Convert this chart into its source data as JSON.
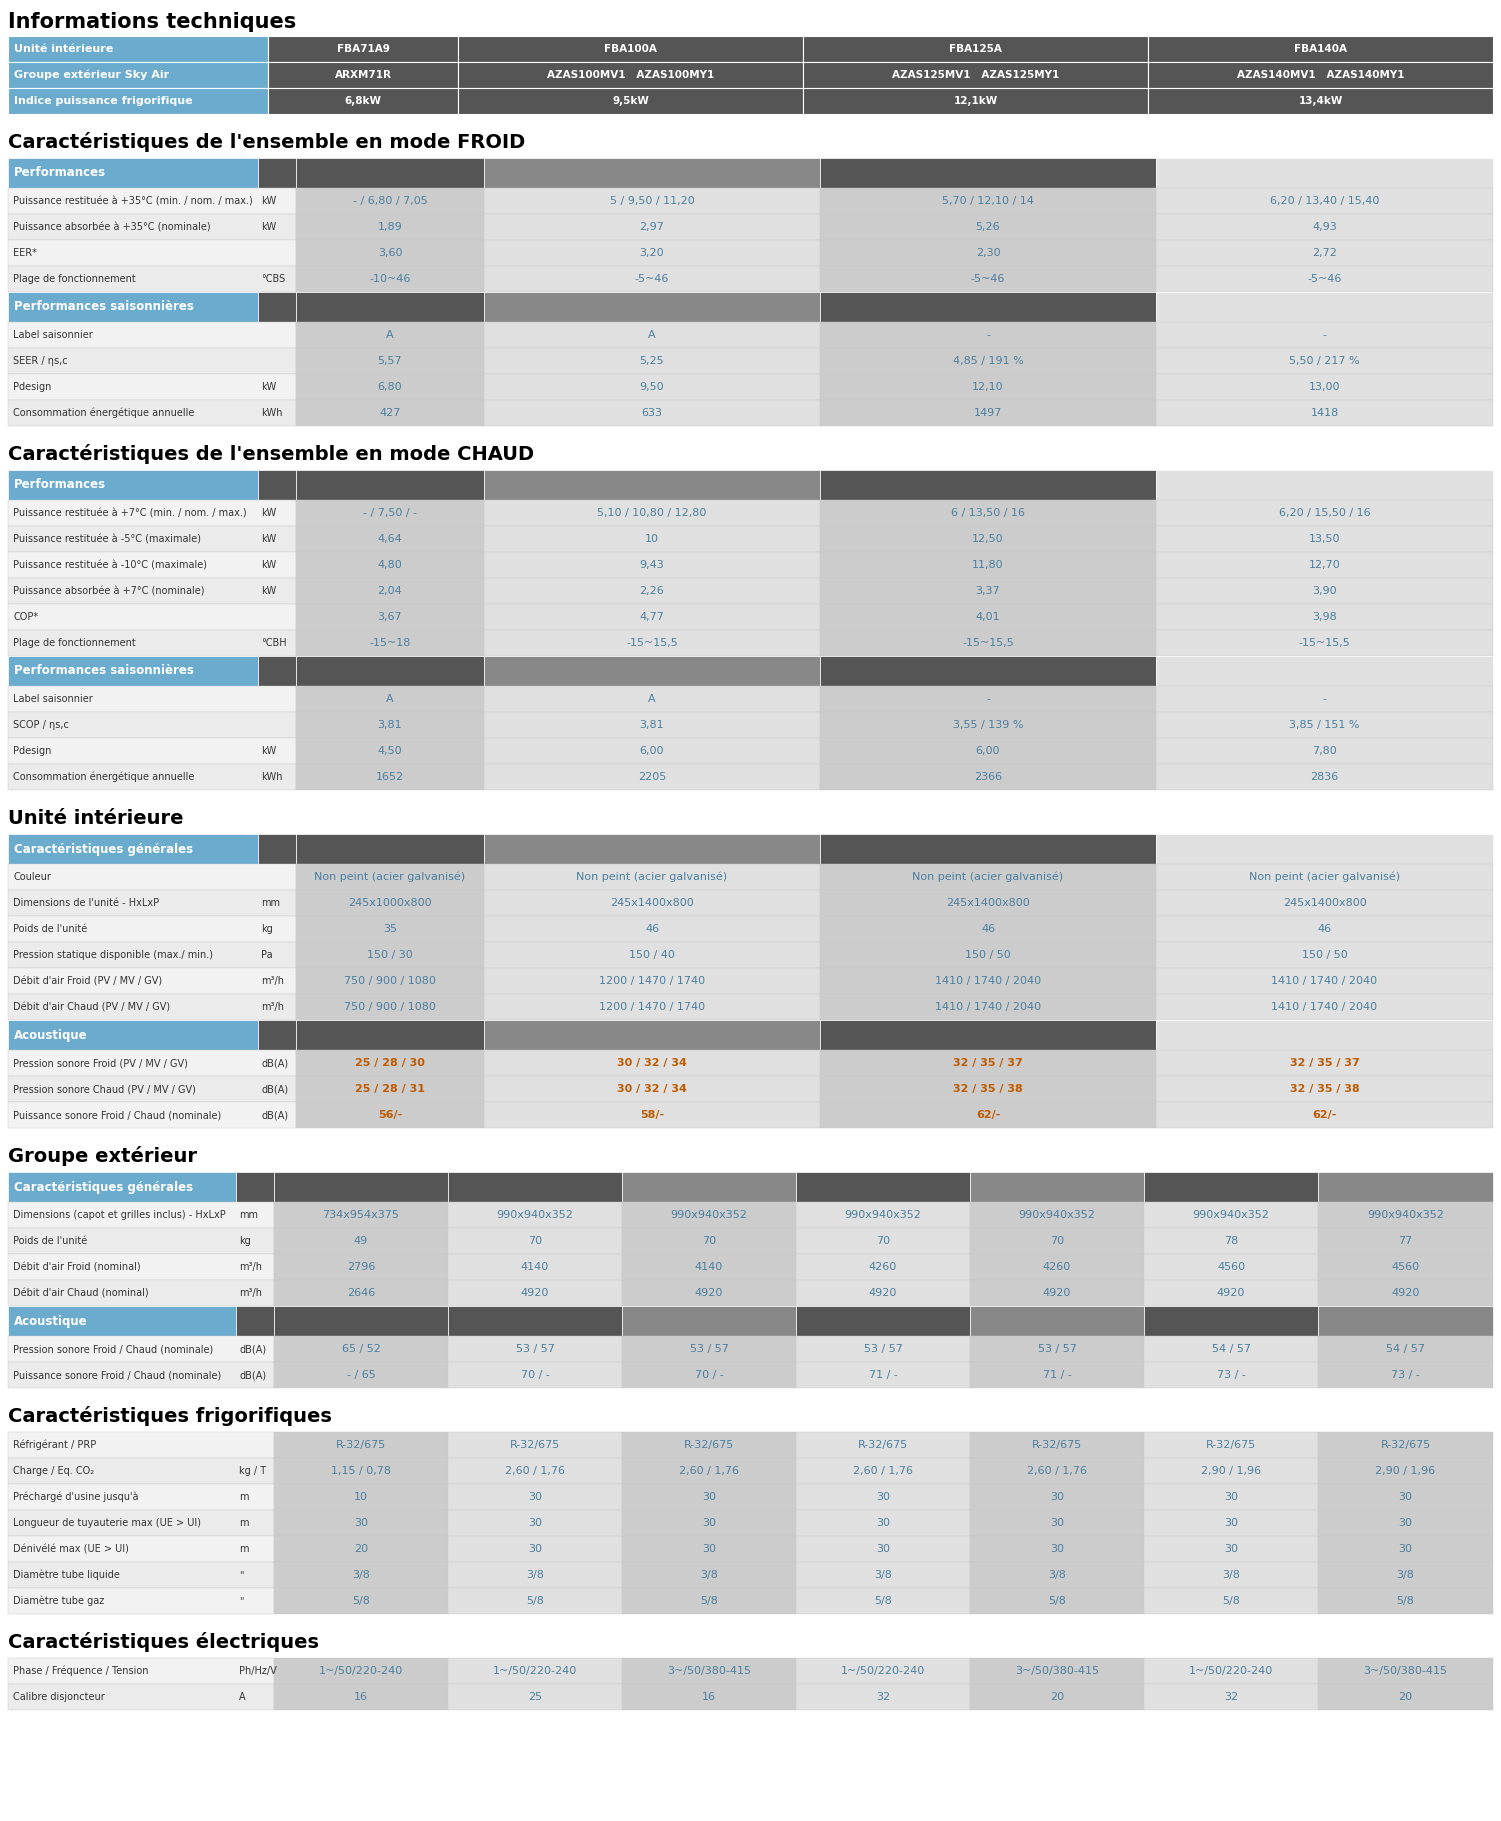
{
  "title_main": "Informations techniques",
  "title_froid": "Caractéristiques de l'ensemble en mode FROID",
  "title_chaud": "Caractéristiques de l'ensemble en mode CHAUD",
  "title_unite": "Unité intérieure",
  "title_groupe": "Groupe extérieur",
  "title_frigo": "Caractéristiques frigorifiques",
  "title_elec": "Caractéristiques électriques",
  "col_blue": "#6aabce",
  "col_dark": "#555555",
  "col_medium": "#888888",
  "col_light": "#cccccc",
  "col_white": "#f2f2f2",
  "col_very_light": "#e0e0e0",
  "col_lightest": "#ebebeb",
  "froid_perf_rows": [
    [
      "Puissance restituée à +35°C (min. / nom. / max.)",
      "kW",
      "- / 6,80 / 7,05",
      "5 / 9,50 / 11,20",
      "5,70 / 12,10 / 14",
      "6,20 / 13,40 / 15,40"
    ],
    [
      "Puissance absorbée à +35°C (nominale)",
      "kW",
      "1,89",
      "2,97",
      "5,26",
      "4,93"
    ],
    [
      "EER*",
      "",
      "3,60",
      "3,20",
      "2,30",
      "2,72"
    ],
    [
      "Plage de fonctionnement",
      "°CBS",
      "-10~46",
      "-5~46",
      "-5~46",
      "-5~46"
    ]
  ],
  "froid_saison_rows": [
    [
      "Label saisonnier",
      "",
      "A",
      "A",
      "-",
      "-"
    ],
    [
      "SEER / ηs,c",
      "",
      "5,57",
      "5,25",
      "4,85 / 191 %",
      "5,50 / 217 %"
    ],
    [
      "Pdesign",
      "kW",
      "6,80",
      "9,50",
      "12,10",
      "13,00"
    ],
    [
      "Consommation énergétique annuelle",
      "kWh",
      "427",
      "633",
      "1497",
      "1418"
    ]
  ],
  "chaud_perf_rows": [
    [
      "Puissance restituée à +7°C (min. / nom. / max.)",
      "kW",
      "- / 7,50 / -",
      "5,10 / 10,80 / 12,80",
      "6 / 13,50 / 16",
      "6,20 / 15,50 / 16"
    ],
    [
      "Puissance restituée à -5°C (maximale)",
      "kW",
      "4,64",
      "10",
      "12,50",
      "13,50"
    ],
    [
      "Puissance restituée à -10°C (maximale)",
      "kW",
      "4,80",
      "9,43",
      "11,80",
      "12,70"
    ],
    [
      "Puissance absorbée à +7°C (nominale)",
      "kW",
      "2,04",
      "2,26",
      "3,37",
      "3,90"
    ],
    [
      "COP*",
      "",
      "3,67",
      "4,77",
      "4,01",
      "3,98"
    ],
    [
      "Plage de fonctionnement",
      "°CBH",
      "-15~18",
      "-15~15,5",
      "-15~15,5",
      "-15~15,5"
    ]
  ],
  "chaud_saison_rows": [
    [
      "Label saisonnier",
      "",
      "A",
      "A",
      "-",
      "-"
    ],
    [
      "SCOP / ηs,c",
      "",
      "3,81",
      "3,81",
      "3,55 / 139 %",
      "3,85 / 151 %"
    ],
    [
      "Pdesign",
      "kW",
      "4,50",
      "6,00",
      "6,00",
      "7,80"
    ],
    [
      "Consommation énergétique annuelle",
      "kWh",
      "1652",
      "2205",
      "2366",
      "2836"
    ]
  ],
  "unite_gen_rows": [
    [
      "Couleur",
      "",
      "Non peint (acier galvanisé)",
      "Non peint (acier galvanisé)",
      "Non peint (acier galvanisé)",
      "Non peint (acier galvanisé)"
    ],
    [
      "Dimensions de l'unité - HxLxP",
      "mm",
      "245x1000x800",
      "245x1400x800",
      "245x1400x800",
      "245x1400x800"
    ],
    [
      "Poids de l'unité",
      "kg",
      "35",
      "46",
      "46",
      "46"
    ],
    [
      "Pression statique disponible (max./ min.)",
      "Pa",
      "150 / 30",
      "150 / 40",
      "150 / 50",
      "150 / 50"
    ],
    [
      "Débit d'air Froid (PV / MV / GV)",
      "m³/h",
      "750 / 900 / 1080",
      "1200 / 1470 / 1740",
      "1410 / 1740 / 2040",
      "1410 / 1740 / 2040"
    ],
    [
      "Débit d'air Chaud (PV / MV / GV)",
      "m³/h",
      "750 / 900 / 1080",
      "1200 / 1470 / 1740",
      "1410 / 1740 / 2040",
      "1410 / 1740 / 2040"
    ]
  ],
  "unite_acou_rows": [
    [
      "Pression sonore Froid (PV / MV / GV)",
      "dB(A)",
      "25 / 28 / 30",
      "30 / 32 / 34",
      "32 / 35 / 37",
      "32 / 35 / 37"
    ],
    [
      "Pression sonore Chaud (PV / MV / GV)",
      "dB(A)",
      "25 / 28 / 31",
      "30 / 32 / 34",
      "32 / 35 / 38",
      "32 / 35 / 38"
    ],
    [
      "Puissance sonore Froid / Chaud (nominale)",
      "dB(A)",
      "56/-",
      "58/-",
      "62/-",
      "62/-"
    ]
  ],
  "groupe_gen_rows": [
    [
      "Dimensions (capot et grilles inclus) - HxLxP",
      "mm",
      "734x954x375",
      "990x940x352",
      "990x940x352",
      "990x940x352",
      "990x940x352",
      "990x940x352",
      "990x940x352"
    ],
    [
      "Poids de l'unité",
      "kg",
      "49",
      "70",
      "70",
      "70",
      "70",
      "78",
      "77"
    ],
    [
      "Débit d'air Froid (nominal)",
      "m³/h",
      "2796",
      "4140",
      "4140",
      "4260",
      "4260",
      "4560",
      "4560"
    ],
    [
      "Débit d'air Chaud (nominal)",
      "m³/h",
      "2646",
      "4920",
      "4920",
      "4920",
      "4920",
      "4920",
      "4920"
    ]
  ],
  "groupe_acou_rows": [
    [
      "Pression sonore Froid / Chaud (nominale)",
      "dB(A)",
      "65 / 52",
      "53 / 57",
      "53 / 57",
      "53 / 57",
      "53 / 57",
      "54 / 57",
      "54 / 57"
    ],
    [
      "Puissance sonore Froid / Chaud (nominale)",
      "dB(A)",
      "- / 65",
      "70 / -",
      "70 / -",
      "71 / -",
      "71 / -",
      "73 / -",
      "73 / -"
    ]
  ],
  "frigo_rows": [
    [
      "Réfrigérant / PRP",
      "",
      "R-32/675",
      "R-32/675",
      "R-32/675",
      "R-32/675",
      "R-32/675",
      "R-32/675",
      "R-32/675"
    ],
    [
      "Charge / Eq. CO₂",
      "kg / T",
      "1,15 / 0,78",
      "2,60 / 1,76",
      "2,60 / 1,76",
      "2,60 / 1,76",
      "2,60 / 1,76",
      "2,90 / 1,96",
      "2,90 / 1,96"
    ],
    [
      "Préchargé d'usine jusqu'à",
      "m",
      "10",
      "30",
      "30",
      "30",
      "30",
      "30",
      "30"
    ],
    [
      "Longueur de tuyauterie max (UE > UI)",
      "m",
      "30",
      "30",
      "30",
      "30",
      "30",
      "30",
      "30"
    ],
    [
      "Dénivélé max (UE > UI)",
      "m",
      "20",
      "30",
      "30",
      "30",
      "30",
      "30",
      "30"
    ],
    [
      "Diamètre tube liquide",
      "\"",
      "3/8",
      "3/8",
      "3/8",
      "3/8",
      "3/8",
      "3/8",
      "3/8"
    ],
    [
      "Diamètre tube gaz",
      "\"",
      "5/8",
      "5/8",
      "5/8",
      "5/8",
      "5/8",
      "5/8",
      "5/8"
    ]
  ],
  "elec_rows": [
    [
      "Phase / Fréquence / Tension",
      "Ph/Hz/V",
      "1~/50/220-240",
      "1~/50/220-240",
      "3~/50/380-415",
      "1~/50/220-240",
      "3~/50/380-415",
      "1~/50/220-240",
      "3~/50/380-415"
    ],
    [
      "Calibre disjoncteur",
      "A",
      "16",
      "25",
      "16",
      "32",
      "20",
      "32",
      "20"
    ]
  ]
}
